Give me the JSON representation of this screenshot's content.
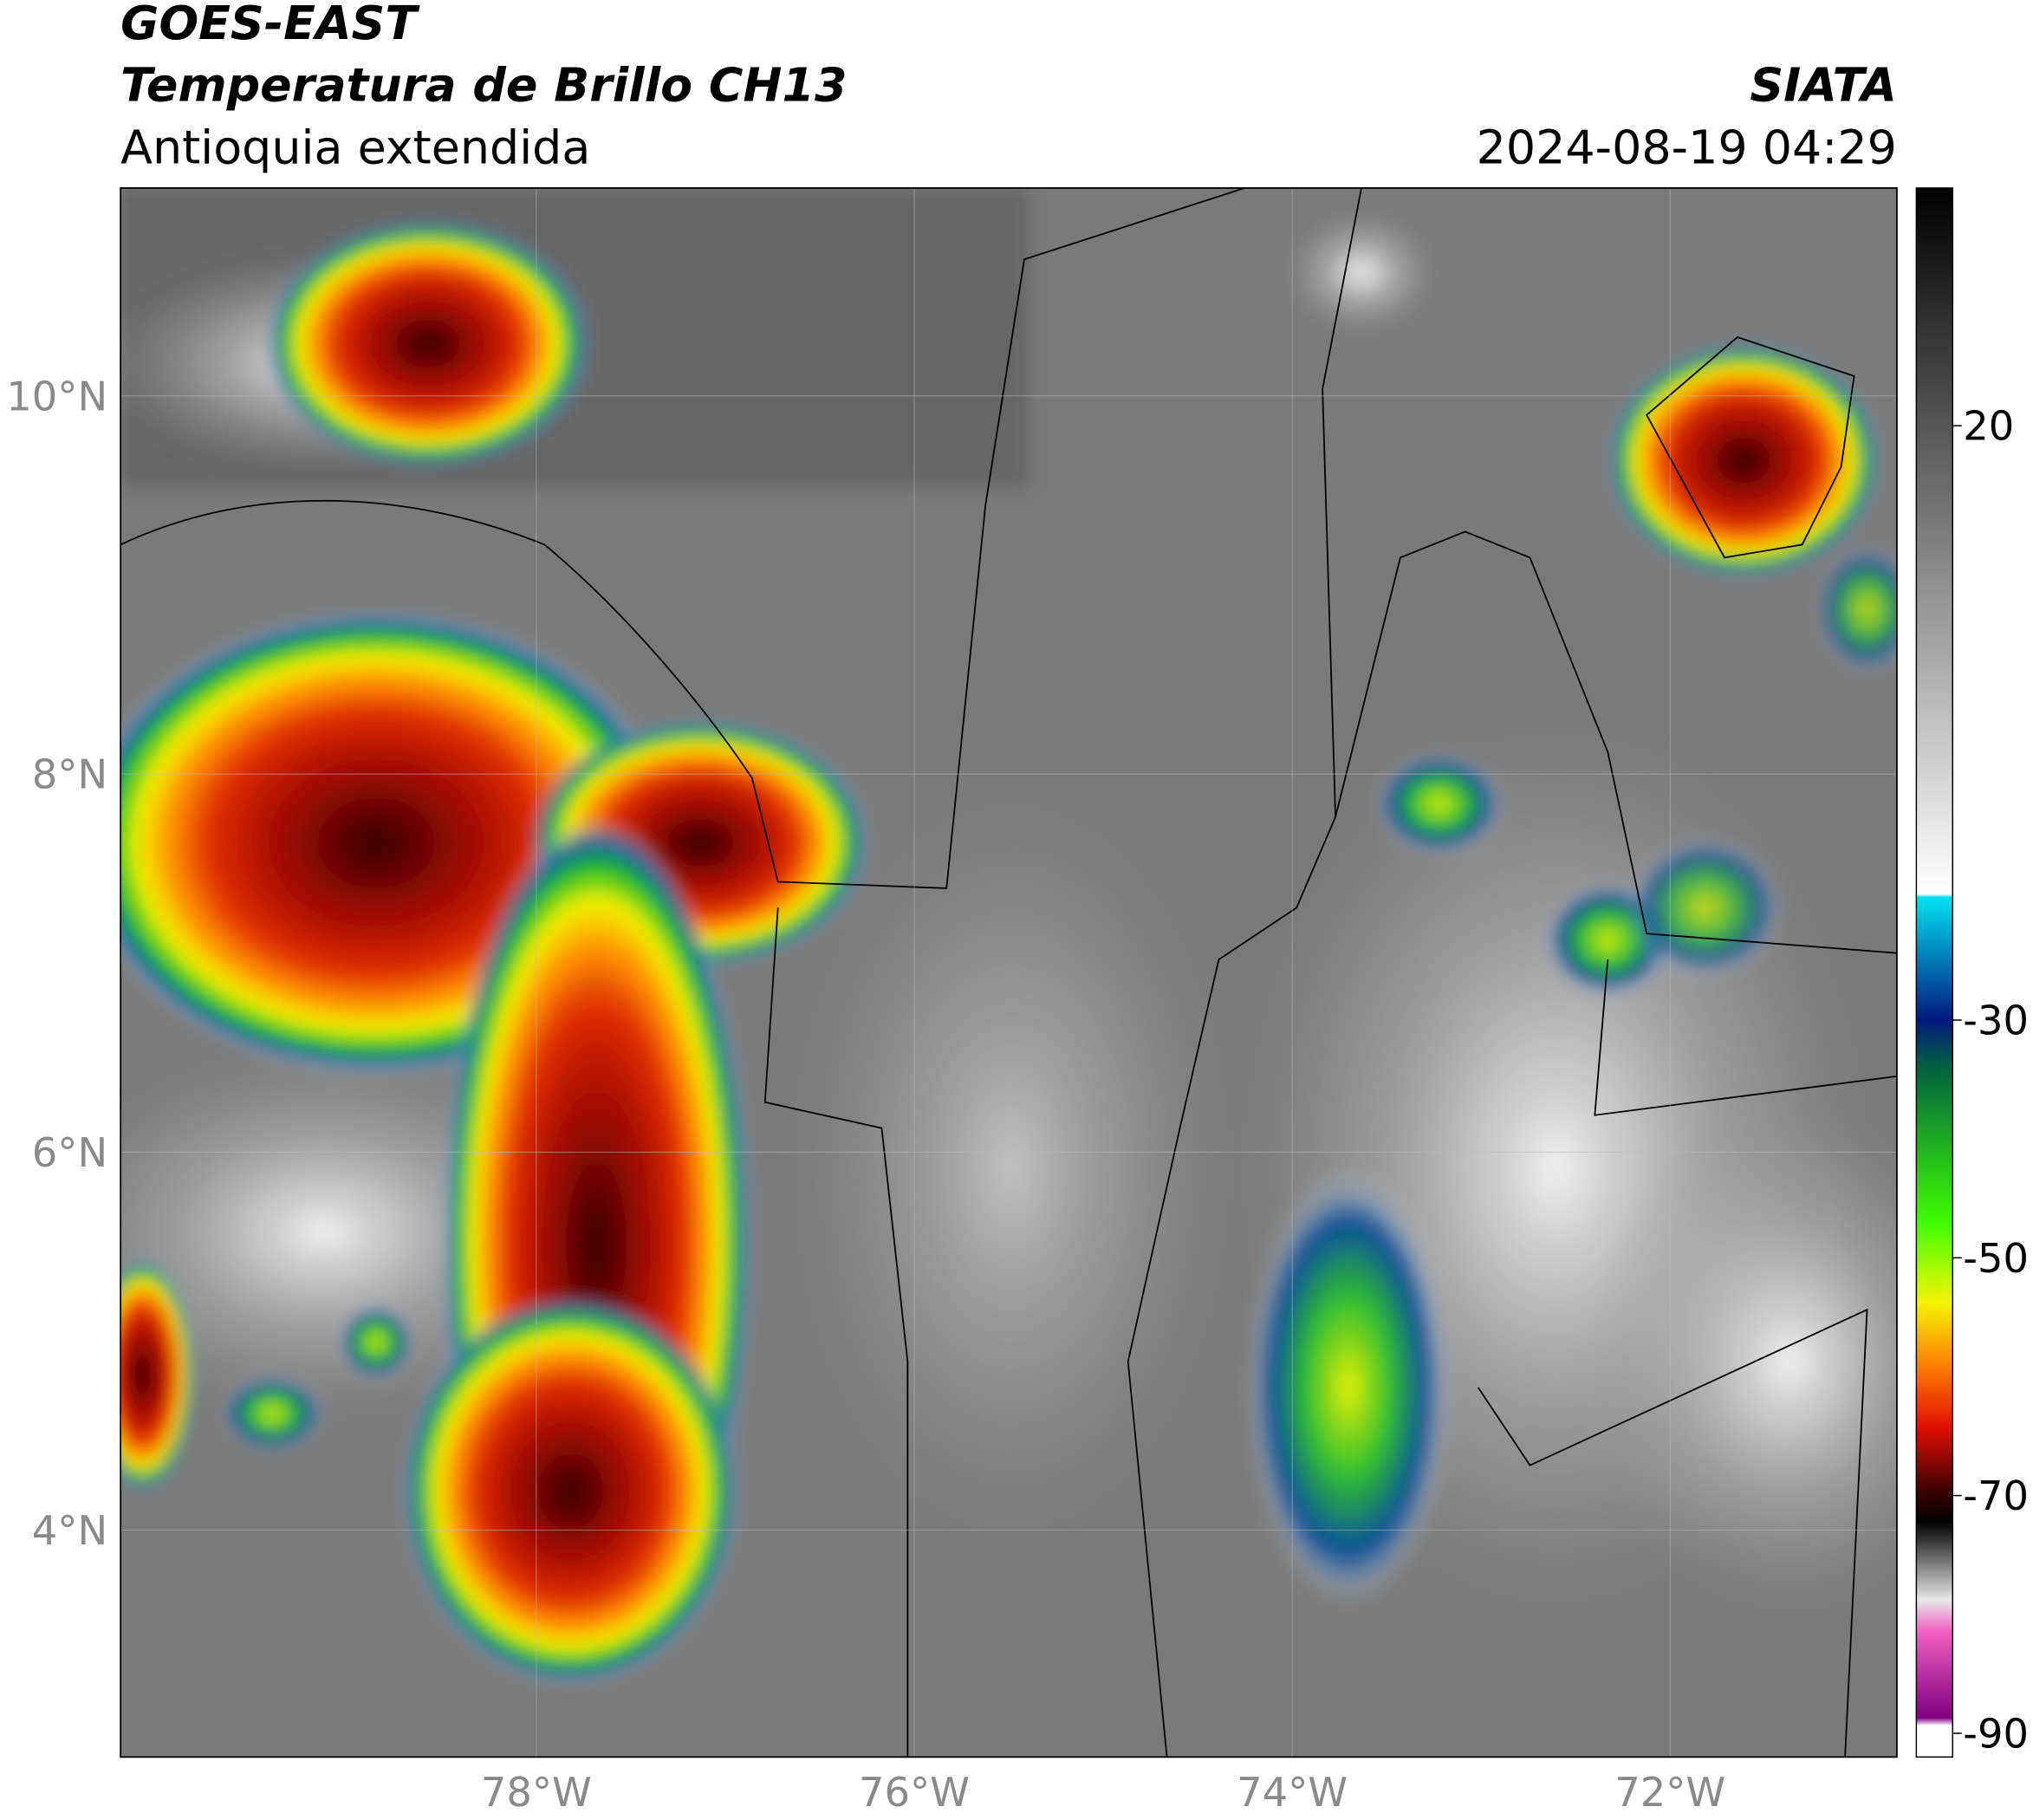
{
  "header": {
    "title_lines": [
      "GOES-EAST",
      "Temperatura de Brillo CH13"
    ],
    "subtitle": "Antioquia extendida",
    "source": "SIATA",
    "datetime": "2024-08-19 04:29"
  },
  "map": {
    "xlim": [
      -80.2,
      -70.8
    ],
    "ylim": [
      2.8,
      11.1
    ],
    "xticks": [
      {
        "value": -78,
        "label": "78°W"
      },
      {
        "value": -76,
        "label": "76°W"
      },
      {
        "value": -74,
        "label": "74°W"
      },
      {
        "value": -72,
        "label": "72°W"
      }
    ],
    "yticks": [
      {
        "value": 4,
        "label": "4°N"
      },
      {
        "value": 6,
        "label": "6°N"
      },
      {
        "value": 8,
        "label": "8°N"
      },
      {
        "value": 10,
        "label": "10°N"
      }
    ]
  },
  "colorbar": {
    "lim": [
      -92,
      40
    ],
    "ticks": [
      -90,
      -70,
      -50,
      -30,
      20
    ]
  }
}
